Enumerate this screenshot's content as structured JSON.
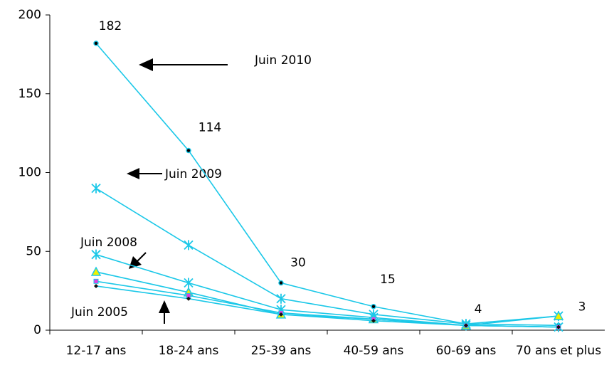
{
  "chart_data": {
    "type": "line",
    "categories": [
      "12-17 ans",
      "18-24 ans",
      "25-39 ans",
      "40-59 ans",
      "60-69 ans",
      "70 ans et plus"
    ],
    "series": [
      {
        "name": "Juin 2010",
        "color": "#1cc8e8",
        "marker": "dot",
        "values": [
          182,
          114,
          30,
          15,
          4,
          3
        ],
        "value_labels": [
          "182",
          "114",
          "30",
          "15",
          "4",
          "3"
        ]
      },
      {
        "name": "Juin 2009",
        "color": "#1cc8e8",
        "marker": "star",
        "values": [
          90,
          54,
          20,
          10,
          4,
          9
        ]
      },
      {
        "name": "Juin 2008",
        "color": "#1cc8e8",
        "marker": "star",
        "values": [
          48,
          30,
          13,
          8,
          3,
          2
        ]
      },
      {
        "color": "#1cc8e8",
        "marker": "triangle",
        "values": [
          37,
          24,
          10,
          7,
          3,
          9
        ]
      },
      {
        "color": "#1cc8e8",
        "marker": "square",
        "values": [
          31,
          22,
          11,
          7,
          3,
          2
        ]
      },
      {
        "name": "Juin 2005",
        "color": "#1cc8e8",
        "marker": "diamond",
        "values": [
          28,
          20,
          10,
          6,
          3,
          2
        ]
      }
    ],
    "ylim": [
      0,
      200
    ],
    "yticks": [
      0,
      50,
      100,
      150,
      200
    ]
  }
}
